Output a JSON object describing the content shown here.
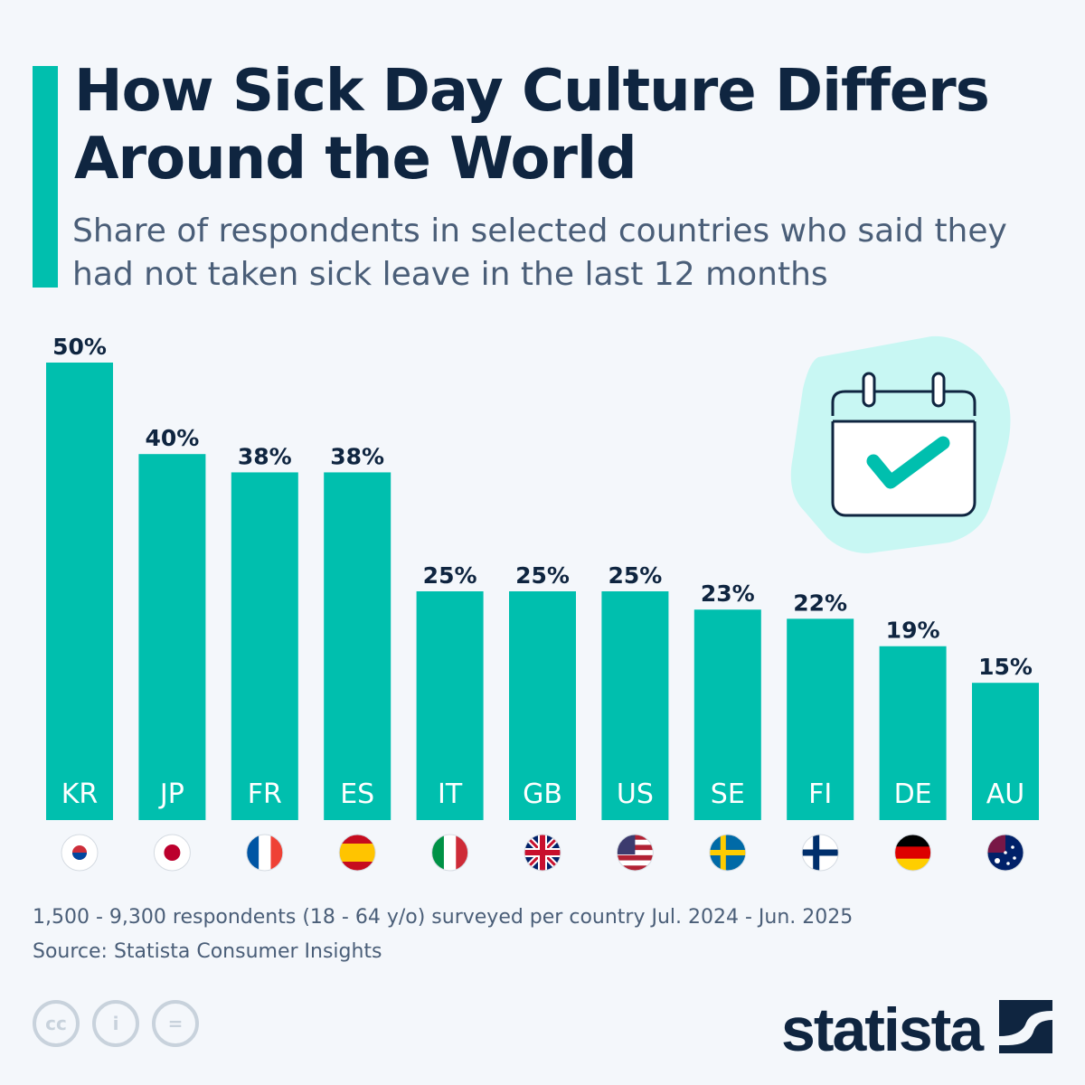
{
  "header": {
    "title": "How Sick Day Culture Differs Around the World",
    "subtitle": "Share of respondents in selected countries who said they had not taken sick leave in the last 12 months"
  },
  "chart_data": {
    "type": "bar",
    "categories": [
      "KR",
      "JP",
      "FR",
      "ES",
      "IT",
      "GB",
      "US",
      "SE",
      "FI",
      "DE",
      "AU"
    ],
    "values": [
      50,
      40,
      38,
      38,
      25,
      25,
      25,
      23,
      22,
      19,
      15
    ],
    "labels": [
      "50%",
      "40%",
      "38%",
      "38%",
      "25%",
      "25%",
      "25%",
      "23%",
      "22%",
      "19%",
      "15%"
    ],
    "ylim": [
      0,
      50
    ],
    "bar_color": "#00bfae",
    "label_color": "#0f2540",
    "grid": false
  },
  "footer": {
    "note": "1,500 - 9,300 respondents (18 - 64 y/o) surveyed per country Jul. 2024 - Jun. 2025",
    "source": "Source: Statista Consumer Insights",
    "license_icons": [
      "cc-icon",
      "attribution-icon",
      "no-derivatives-icon"
    ],
    "logo": "statista"
  },
  "illustration": {
    "icon": "calendar-check-icon",
    "blob_color": "#c8f7f3"
  }
}
